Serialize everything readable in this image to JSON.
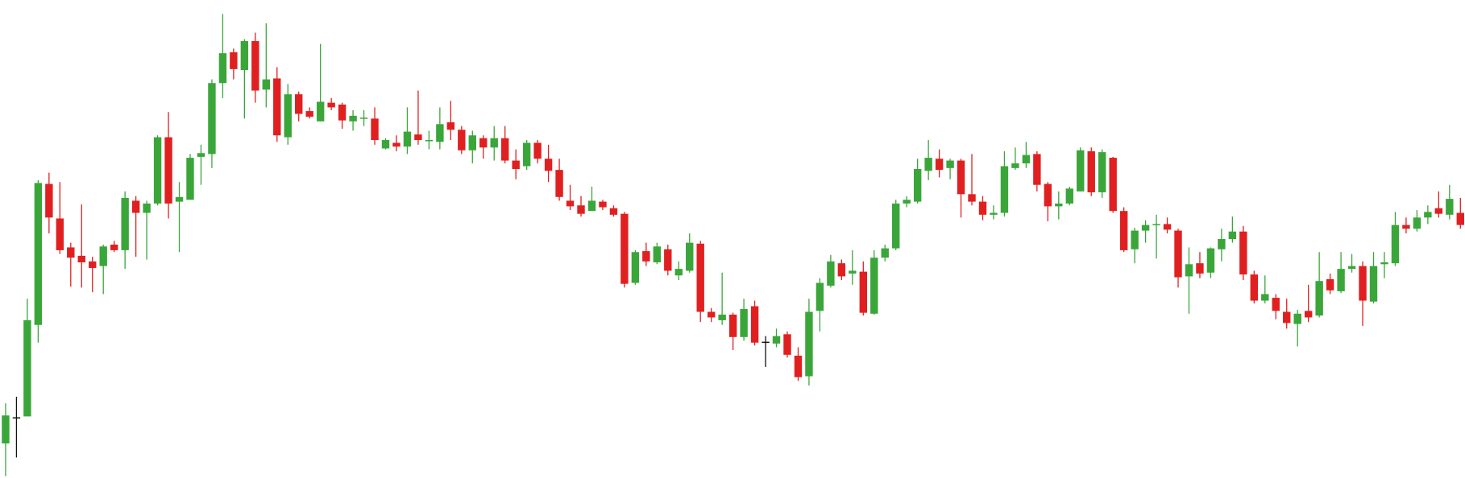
{
  "chart_data": {
    "type": "candlestick",
    "ylim": [
      0,
      512
    ],
    "up_color": "#3aa63a",
    "down_color": "#e02020",
    "flat_color": "#111111",
    "ohlc": [
      [
        37,
        80,
        2,
        67
      ],
      [
        65,
        87,
        22,
        65
      ],
      [
        66,
        192,
        66,
        169
      ],
      [
        164,
        319,
        145,
        316
      ],
      [
        315,
        327,
        262,
        279
      ],
      [
        278,
        317,
        240,
        244
      ],
      [
        247,
        252,
        205,
        236
      ],
      [
        238,
        293,
        204,
        231
      ],
      [
        232,
        237,
        199,
        225
      ],
      [
        227,
        250,
        197,
        248
      ],
      [
        250,
        254,
        242,
        244
      ],
      [
        244,
        307,
        224,
        300
      ],
      [
        297,
        302,
        237,
        284
      ],
      [
        284,
        297,
        234,
        294
      ],
      [
        294,
        367,
        292,
        365
      ],
      [
        365,
        392,
        278,
        294
      ],
      [
        296,
        317,
        242,
        301
      ],
      [
        298,
        347,
        298,
        343
      ],
      [
        344,
        357,
        314,
        348
      ],
      [
        347,
        427,
        332,
        423
      ],
      [
        423,
        497,
        407,
        455
      ],
      [
        456,
        460,
        427,
        438
      ],
      [
        437,
        470,
        385,
        468
      ],
      [
        468,
        477,
        402,
        415
      ],
      [
        416,
        487,
        397,
        427
      ],
      [
        428,
        440,
        360,
        367
      ],
      [
        365,
        422,
        357,
        411
      ],
      [
        411,
        414,
        382,
        390
      ],
      [
        393,
        397,
        385,
        387
      ],
      [
        382,
        465,
        382,
        403
      ],
      [
        402,
        407,
        394,
        397
      ],
      [
        400,
        402,
        374,
        383
      ],
      [
        382,
        394,
        372,
        388
      ],
      [
        385,
        394,
        377,
        386
      ],
      [
        385,
        397,
        357,
        362
      ],
      [
        353,
        364,
        352,
        362
      ],
      [
        359,
        367,
        350,
        355
      ],
      [
        355,
        397,
        347,
        371
      ],
      [
        368,
        415,
        357,
        362
      ],
      [
        361,
        372,
        352,
        362
      ],
      [
        360,
        397,
        352,
        379
      ],
      [
        381,
        404,
        362,
        373
      ],
      [
        373,
        377,
        347,
        351
      ],
      [
        351,
        372,
        337,
        367
      ],
      [
        364,
        367,
        342,
        354
      ],
      [
        354,
        377,
        340,
        364
      ],
      [
        364,
        377,
        337,
        340
      ],
      [
        340,
        352,
        320,
        331
      ],
      [
        334,
        362,
        330,
        359
      ],
      [
        359,
        362,
        337,
        342
      ],
      [
        342,
        357,
        317,
        329
      ],
      [
        330,
        342,
        297,
        301
      ],
      [
        297,
        314,
        287,
        291
      ],
      [
        292,
        302,
        280,
        283
      ],
      [
        286,
        312,
        286,
        297
      ],
      [
        296,
        298,
        287,
        290
      ],
      [
        289,
        292,
        280,
        282
      ],
      [
        283,
        285,
        204,
        208
      ],
      [
        209,
        244,
        207,
        242
      ],
      [
        243,
        252,
        227,
        232
      ],
      [
        231,
        252,
        229,
        248
      ],
      [
        245,
        250,
        217,
        222
      ],
      [
        217,
        232,
        212,
        224
      ],
      [
        222,
        262,
        220,
        252
      ],
      [
        251,
        254,
        167,
        178
      ],
      [
        178,
        182,
        167,
        172
      ],
      [
        169,
        220,
        164,
        175
      ],
      [
        175,
        177,
        137,
        151
      ],
      [
        151,
        192,
        147,
        181
      ],
      [
        184,
        190,
        142,
        145
      ],
      [
        146,
        152,
        119,
        146
      ],
      [
        144,
        160,
        140,
        152
      ],
      [
        154,
        157,
        129,
        132
      ],
      [
        131,
        140,
        104,
        108
      ],
      [
        109,
        192,
        99,
        178
      ],
      [
        179,
        214,
        157,
        209
      ],
      [
        206,
        239,
        204,
        232
      ],
      [
        230,
        234,
        212,
        216
      ],
      [
        219,
        244,
        207,
        222
      ],
      [
        221,
        232,
        174,
        177
      ],
      [
        176,
        244,
        175,
        236
      ],
      [
        236,
        250,
        232,
        246
      ],
      [
        246,
        298,
        244,
        294
      ],
      [
        294,
        302,
        290,
        298
      ],
      [
        296,
        342,
        294,
        331
      ],
      [
        329,
        362,
        319,
        343
      ],
      [
        342,
        352,
        322,
        330
      ],
      [
        332,
        342,
        320,
        340
      ],
      [
        340,
        342,
        279,
        304
      ],
      [
        304,
        347,
        292,
        296
      ],
      [
        296,
        302,
        276,
        282
      ],
      [
        282,
        292,
        277,
        284
      ],
      [
        284,
        350,
        280,
        334
      ],
      [
        332,
        354,
        330,
        337
      ],
      [
        337,
        360,
        332,
        346
      ],
      [
        347,
        350,
        307,
        314
      ],
      [
        315,
        317,
        275,
        291
      ],
      [
        291,
        307,
        277,
        294
      ],
      [
        294,
        312,
        292,
        310
      ],
      [
        307,
        354,
        307,
        351
      ],
      [
        350,
        354,
        302,
        306
      ],
      [
        306,
        352,
        300,
        349
      ],
      [
        343,
        344,
        284,
        286
      ],
      [
        286,
        290,
        242,
        244
      ],
      [
        245,
        268,
        230,
        265
      ],
      [
        265,
        276,
        252,
        271
      ],
      [
        271,
        282,
        235,
        272
      ],
      [
        272,
        279,
        262,
        266
      ],
      [
        265,
        267,
        204,
        215
      ],
      [
        216,
        247,
        176,
        229
      ],
      [
        230,
        242,
        214,
        219
      ],
      [
        220,
        247,
        214,
        246
      ],
      [
        245,
        267,
        232,
        256
      ],
      [
        256,
        280,
        252,
        264
      ],
      [
        264,
        270,
        212,
        218
      ],
      [
        218,
        222,
        187,
        190
      ],
      [
        190,
        217,
        187,
        197
      ],
      [
        193,
        197,
        170,
        179
      ],
      [
        178,
        192,
        160,
        166
      ],
      [
        165,
        180,
        141,
        176
      ],
      [
        179,
        207,
        167,
        172
      ],
      [
        174,
        242,
        172,
        211
      ],
      [
        213,
        219,
        197,
        201
      ],
      [
        200,
        242,
        198,
        224
      ],
      [
        224,
        240,
        220,
        227
      ],
      [
        227,
        232,
        163,
        190
      ],
      [
        189,
        242,
        187,
        227
      ],
      [
        229,
        242,
        214,
        231
      ],
      [
        230,
        285,
        227,
        271
      ],
      [
        271,
        279,
        262,
        267
      ],
      [
        267,
        287,
        264,
        279
      ],
      [
        279,
        292,
        272,
        285
      ],
      [
        289,
        307,
        279,
        283
      ],
      [
        282,
        314,
        277,
        299
      ],
      [
        284,
        300,
        267,
        271
      ]
    ]
  }
}
